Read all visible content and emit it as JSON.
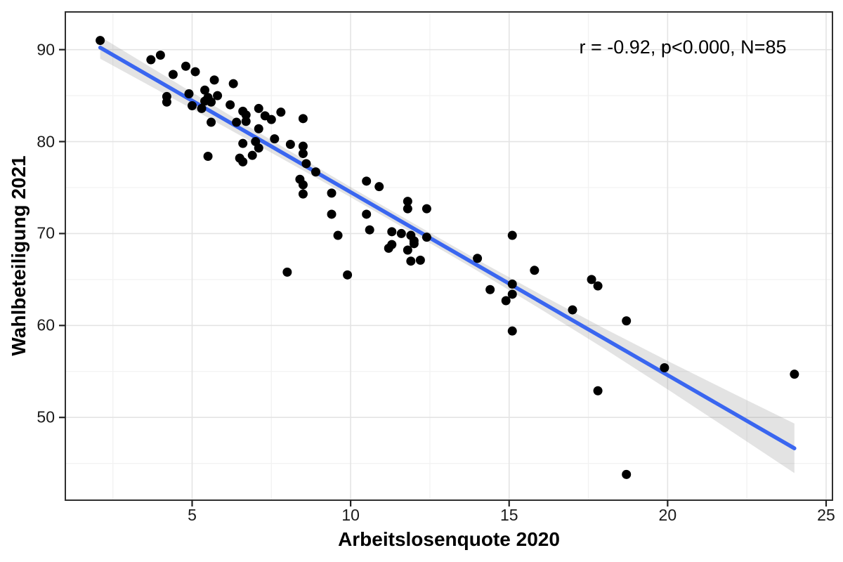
{
  "figure": {
    "background": "#ffffff"
  },
  "chart_data": {
    "type": "scatter",
    "title": "",
    "xlabel": "Arbeitslosenquote 2020",
    "ylabel": "Wahlbeteiligung 2021",
    "annotation": "r = -0.92, p<0.000, N=85",
    "n_points": 85,
    "xlim": [
      1.0,
      25.2
    ],
    "ylim": [
      41.0,
      94.1
    ],
    "x_ticks": [
      5,
      10,
      15,
      20,
      25
    ],
    "y_ticks": [
      50,
      60,
      70,
      80,
      90
    ],
    "x_minor_ticks": [
      2.5,
      7.5,
      12.5,
      17.5,
      22.5
    ],
    "y_minor_ticks": [
      45,
      55,
      65,
      75,
      85
    ],
    "grid": "major+minor",
    "legend": "none",
    "colors": {
      "grid_major": "#e4e4e4",
      "grid_minor": "#f2f2f2",
      "panel_border": "#2f2f2f",
      "tick_mark": "#222222",
      "point": "#000000",
      "regression_line": "#3a66f0",
      "band": "#9a9a9a"
    },
    "point_radius": 6.5,
    "points": [
      [
        2.1,
        91.0
      ],
      [
        3.7,
        88.9
      ],
      [
        4.0,
        89.4
      ],
      [
        4.8,
        88.2
      ],
      [
        5.1,
        87.6
      ],
      [
        4.4,
        87.3
      ],
      [
        5.7,
        86.7
      ],
      [
        6.3,
        86.3
      ],
      [
        4.9,
        85.2
      ],
      [
        5.4,
        85.6
      ],
      [
        5.5,
        84.8
      ],
      [
        5.8,
        85.0
      ],
      [
        4.2,
        84.9
      ],
      [
        4.2,
        84.3
      ],
      [
        5.0,
        83.9
      ],
      [
        5.4,
        84.4
      ],
      [
        5.6,
        84.3
      ],
      [
        6.2,
        84.0
      ],
      [
        6.6,
        83.3
      ],
      [
        6.7,
        82.9
      ],
      [
        6.7,
        82.2
      ],
      [
        6.4,
        82.1
      ],
      [
        5.6,
        82.1
      ],
      [
        7.1,
        83.6
      ],
      [
        7.3,
        82.8
      ],
      [
        7.5,
        82.4
      ],
      [
        7.8,
        83.2
      ],
      [
        8.5,
        82.5
      ],
      [
        7.1,
        81.4
      ],
      [
        7.6,
        80.3
      ],
      [
        8.1,
        79.7
      ],
      [
        8.5,
        79.5
      ],
      [
        7.0,
        80.0
      ],
      [
        7.1,
        79.3
      ],
      [
        6.9,
        78.5
      ],
      [
        6.6,
        79.8
      ],
      [
        6.5,
        78.2
      ],
      [
        6.6,
        77.8
      ],
      [
        5.5,
        78.4
      ],
      [
        8.5,
        78.7
      ],
      [
        8.6,
        77.6
      ],
      [
        8.9,
        76.7
      ],
      [
        8.4,
        75.9
      ],
      [
        8.5,
        75.3
      ],
      [
        8.5,
        74.3
      ],
      [
        9.4,
        74.4
      ],
      [
        9.4,
        72.1
      ],
      [
        9.6,
        69.8
      ],
      [
        10.5,
        75.7
      ],
      [
        10.9,
        75.1
      ],
      [
        10.5,
        72.1
      ],
      [
        10.6,
        70.4
      ],
      [
        11.8,
        73.5
      ],
      [
        11.8,
        72.7
      ],
      [
        12.4,
        72.7
      ],
      [
        11.3,
        70.2
      ],
      [
        11.6,
        70.0
      ],
      [
        11.9,
        69.8
      ],
      [
        12.0,
        69.2
      ],
      [
        12.0,
        68.9
      ],
      [
        11.3,
        68.8
      ],
      [
        11.2,
        68.4
      ],
      [
        11.8,
        68.2
      ],
      [
        12.4,
        69.6
      ],
      [
        11.9,
        67.0
      ],
      [
        12.2,
        67.1
      ],
      [
        14.0,
        67.3
      ],
      [
        8.0,
        65.8
      ],
      [
        9.9,
        65.5
      ],
      [
        14.4,
        63.9
      ],
      [
        15.1,
        69.8
      ],
      [
        15.8,
        66.0
      ],
      [
        15.1,
        64.5
      ],
      [
        15.1,
        63.4
      ],
      [
        14.9,
        62.7
      ],
      [
        17.6,
        65.0
      ],
      [
        17.8,
        64.3
      ],
      [
        17.0,
        61.7
      ],
      [
        18.7,
        60.5
      ],
      [
        15.1,
        59.4
      ],
      [
        19.9,
        55.4
      ],
      [
        17.8,
        52.9
      ],
      [
        24.0,
        54.7
      ],
      [
        18.7,
        43.8
      ],
      [
        5.3,
        83.6
      ]
    ],
    "regression": {
      "slope": -1.99,
      "intercept": 94.4,
      "x_start": 2.1,
      "x_end": 24.0
    },
    "confidence_band": {
      "x": [
        2.1,
        4.0,
        6.0,
        8.0,
        10.0,
        12.0,
        14.0,
        16.0,
        18.0,
        20.0,
        22.0,
        24.0
      ],
      "half_width": [
        1.2,
        1.0,
        0.8,
        0.65,
        0.55,
        0.55,
        0.6,
        0.8,
        1.1,
        1.55,
        2.1,
        2.7
      ],
      "opacity": 0.28
    }
  }
}
